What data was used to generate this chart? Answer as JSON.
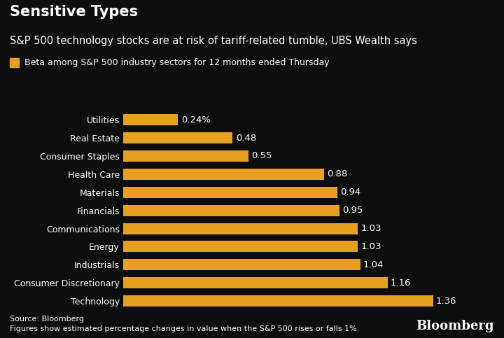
{
  "title": "Sensitive Types",
  "subtitle": "S&P 500 technology stocks are at risk of tariff-related tumble, UBS Wealth says",
  "legend_label": "Beta among S&P 500 industry sectors for 12 months ended Thursday",
  "categories": [
    "Technology",
    "Consumer Discretionary",
    "Industrials",
    "Energy",
    "Communications",
    "Financials",
    "Materials",
    "Health Care",
    "Consumer Staples",
    "Real Estate",
    "Utilities"
  ],
  "values": [
    1.36,
    1.16,
    1.04,
    1.03,
    1.03,
    0.95,
    0.94,
    0.88,
    0.55,
    0.48,
    0.24
  ],
  "value_labels": [
    "1.36",
    "1.16",
    "1.04",
    "1.03",
    "1.03",
    "0.95",
    "0.94",
    "0.88",
    "0.55",
    "0.48",
    "0.24%"
  ],
  "bar_color": "#E8A020",
  "background_color": "#0d0d0d",
  "text_color": "#ffffff",
  "source_line1": "Source: Bloomberg",
  "source_line2": "Figures show estimated percentage changes in value when the S&P 500 rises or falls 1%.",
  "bloomberg_text": "Bloomberg",
  "title_fontsize": 15,
  "subtitle_fontsize": 10.5,
  "legend_fontsize": 9,
  "label_fontsize": 9,
  "bar_label_fontsize": 9.5,
  "source_fontsize": 8,
  "bloomberg_fontsize": 13,
  "xlim": [
    0,
    1.55
  ]
}
